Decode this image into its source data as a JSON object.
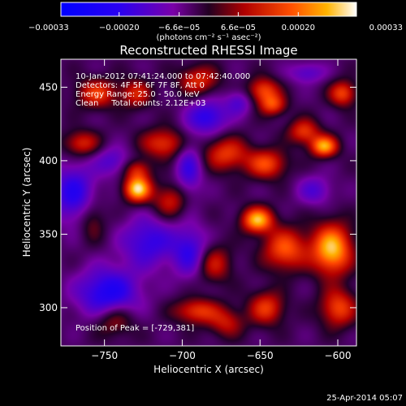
{
  "chart_data": {
    "type": "heatmap",
    "title": "Reconstructed RHESSI Image",
    "xlabel": "Heliocentric X (arcsec)",
    "ylabel": "Heliocentric Y (arcsec)",
    "xlim": [
      -778,
      -588
    ],
    "ylim": [
      274,
      469
    ],
    "x_ticks": [
      {
        "value": -750,
        "label": "−750"
      },
      {
        "value": -700,
        "label": "−700"
      },
      {
        "value": -650,
        "label": "−650"
      },
      {
        "value": -600,
        "label": "−600"
      }
    ],
    "y_ticks": [
      {
        "value": 300,
        "label": "300"
      },
      {
        "value": 350,
        "label": "350"
      },
      {
        "value": 400,
        "label": "400"
      },
      {
        "value": 450,
        "label": "450"
      }
    ],
    "colorbar": {
      "range": [
        -0.00033,
        0.00033
      ],
      "ticks": [
        {
          "value": -0.00033,
          "label": "−0.00033"
        },
        {
          "value": -0.0002,
          "label": "−0.00020"
        },
        {
          "value": -6.6e-05,
          "label": "−6.6e−05"
        },
        {
          "value": 6.6e-05,
          "label": "6.6e−05"
        },
        {
          "value": 0.0002,
          "label": "0.00020"
        },
        {
          "value": 0.00033,
          "label": "0.00033"
        }
      ],
      "unit_label": "(photons cm⁻² s⁻¹ asec⁻²)"
    },
    "info_lines": [
      "10-Jan-2012 07:41:24.000 to 07:42:40.000",
      "Detectors: 4F 5F 6F 7F 8F, Att 0",
      "Energy Range: 25.0 - 50.0 keV",
      "Clean     Total counts: 2.12E+03"
    ],
    "peak_label": "Position of Peak = [-729,381]",
    "peak": {
      "x": -729,
      "y": 381
    },
    "date_stamp": "25-Apr-2014 05:07",
    "blobs": [
      {
        "x": -729,
        "y": 381,
        "sx": 6,
        "sy": 6,
        "a": 1.0
      },
      {
        "x": -729,
        "y": 394,
        "sx": 6,
        "sy": 5,
        "a": 0.45
      },
      {
        "x": -755,
        "y": 446,
        "sx": 9,
        "sy": 7,
        "a": 0.55
      },
      {
        "x": -765,
        "y": 412,
        "sx": 8,
        "sy": 6,
        "a": 0.5
      },
      {
        "x": -730,
        "y": 446,
        "sx": 7,
        "sy": 7,
        "a": 0.45
      },
      {
        "x": -712,
        "y": 412,
        "sx": 10,
        "sy": 7,
        "a": 0.55
      },
      {
        "x": -708,
        "y": 373,
        "sx": 8,
        "sy": 8,
        "a": 0.45
      },
      {
        "x": -690,
        "y": 455,
        "sx": 9,
        "sy": 7,
        "a": 0.5
      },
      {
        "x": -648,
        "y": 448,
        "sx": 7,
        "sy": 6,
        "a": 0.6
      },
      {
        "x": -642,
        "y": 438,
        "sx": 6,
        "sy": 5,
        "a": 0.55
      },
      {
        "x": -672,
        "y": 405,
        "sx": 10,
        "sy": 8,
        "a": 0.55
      },
      {
        "x": -646,
        "y": 398,
        "sx": 9,
        "sy": 7,
        "a": 0.6
      },
      {
        "x": -622,
        "y": 420,
        "sx": 7,
        "sy": 6,
        "a": 0.55
      },
      {
        "x": -609,
        "y": 410,
        "sx": 6,
        "sy": 5,
        "a": 0.85
      },
      {
        "x": -597,
        "y": 446,
        "sx": 6,
        "sy": 6,
        "a": 0.6
      },
      {
        "x": -652,
        "y": 360,
        "sx": 7,
        "sy": 6,
        "a": 0.9
      },
      {
        "x": -634,
        "y": 340,
        "sx": 10,
        "sy": 10,
        "a": 0.65
      },
      {
        "x": -604,
        "y": 340,
        "sx": 9,
        "sy": 12,
        "a": 0.95
      },
      {
        "x": -600,
        "y": 300,
        "sx": 8,
        "sy": 9,
        "a": 0.6
      },
      {
        "x": -646,
        "y": 300,
        "sx": 8,
        "sy": 8,
        "a": 0.55
      },
      {
        "x": -680,
        "y": 330,
        "sx": 8,
        "sy": 9,
        "a": 0.45
      },
      {
        "x": -672,
        "y": 290,
        "sx": 8,
        "sy": 7,
        "a": 0.4
      },
      {
        "x": -744,
        "y": 292,
        "sx": 9,
        "sy": 8,
        "a": 0.4
      },
      {
        "x": -758,
        "y": 360,
        "sx": 6,
        "sy": 10,
        "a": 0.3
      },
      {
        "x": -691,
        "y": 298,
        "sx": 10,
        "sy": 6,
        "a": 0.55
      },
      {
        "x": -748,
        "y": 310,
        "sx": 14,
        "sy": 12,
        "a": -0.65
      },
      {
        "x": -722,
        "y": 345,
        "sx": 12,
        "sy": 12,
        "a": -0.5
      },
      {
        "x": -770,
        "y": 378,
        "sx": 10,
        "sy": 14,
        "a": -0.55
      },
      {
        "x": -695,
        "y": 338,
        "sx": 8,
        "sy": 12,
        "a": -0.5
      },
      {
        "x": -684,
        "y": 430,
        "sx": 9,
        "sy": 8,
        "a": -0.55
      },
      {
        "x": -696,
        "y": 395,
        "sx": 6,
        "sy": 14,
        "a": -0.45
      },
      {
        "x": -615,
        "y": 380,
        "sx": 8,
        "sy": 7,
        "a": -0.35
      },
      {
        "x": -620,
        "y": 460,
        "sx": 8,
        "sy": 5,
        "a": -0.35
      },
      {
        "x": -745,
        "y": 400,
        "sx": 8,
        "sy": 7,
        "a": -0.35
      },
      {
        "x": -664,
        "y": 440,
        "sx": 6,
        "sy": 6,
        "a": -0.35
      }
    ]
  }
}
